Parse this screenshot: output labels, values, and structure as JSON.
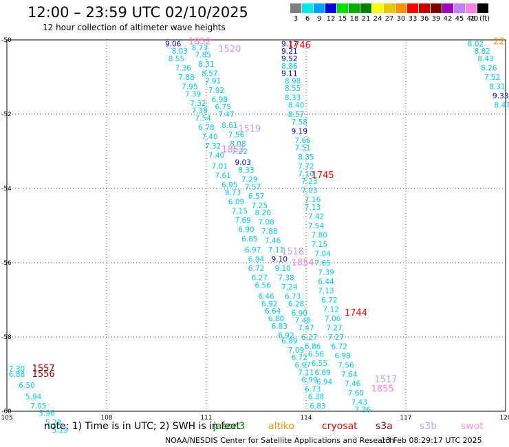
{
  "header": {
    "title": "12:00 – 23:59 UTC 02/10/2025",
    "subtitle": "12 hour collection of altimeter wave heights"
  },
  "legend": {
    "unit": "(ft)",
    "bins": [
      {
        "label": "3",
        "color": "#7f7f7f"
      },
      {
        "label": "6",
        "color": "#00e8e8"
      },
      {
        "label": "9",
        "color": "#00a0ff"
      },
      {
        "label": "12",
        "color": "#0000e0"
      },
      {
        "label": "15",
        "color": "#00e000"
      },
      {
        "label": "18",
        "color": "#00b000"
      },
      {
        "label": "21",
        "color": "#008000"
      },
      {
        "label": "24",
        "color": "#ffff00"
      },
      {
        "label": "27",
        "color": "#e8c800"
      },
      {
        "label": "30",
        "color": "#ff9000"
      },
      {
        "label": "33",
        "color": "#ff0000"
      },
      {
        "label": "36",
        "color": "#c80000"
      },
      {
        "label": "39",
        "color": "#800000"
      },
      {
        "label": "42",
        "color": "#a000c0"
      },
      {
        "label": "45",
        "color": "#c080ff"
      },
      {
        "label": "48",
        "color": "#ff80e0"
      },
      {
        "label": "70",
        "color": "#000000"
      }
    ]
  },
  "footer": {
    "note": "note: 1) Time is in UTC; 2) SWH is in feet",
    "satellites": [
      {
        "name": "jason3",
        "color": "#008000"
      },
      {
        "name": "altiko",
        "color": "#ff9000"
      },
      {
        "name": "cryosat",
        "color": "#e00000"
      },
      {
        "name": "s3a",
        "color": "#900000"
      },
      {
        "name": "s3b",
        "color": "#c0a8f0"
      },
      {
        "name": "swot",
        "color": "#ff90e0"
      }
    ],
    "credit": "NOAA/NESDIS Center for Satellite Applications and Research",
    "timestamp": "13 Feb 08:29:17 UTC 2025"
  },
  "chart_data": {
    "type": "scatter",
    "title": "12:00 – 23:59 UTC 02/10/2025",
    "subtitle": "12 hour collection of altimeter wave heights",
    "xlabel": "",
    "ylabel": "",
    "x_ticks": [
      105,
      108,
      111,
      114,
      117,
      120
    ],
    "x_tick_labels": [
      "105",
      "108",
      "111",
      "114",
      "117",
      "120"
    ],
    "y_ticks": [
      -50,
      -52,
      -54,
      -56,
      -58,
      -60
    ],
    "y_tick_labels": [
      "-50",
      "-52",
      "-54",
      "-56",
      "-58",
      "-60"
    ],
    "xlim": [
      105,
      120
    ],
    "ylim": [
      -60,
      -50
    ],
    "grid": true,
    "colors": {
      "cyan": "#00c8e8",
      "blue": "#1040ff",
      "navy": "#0000b0",
      "red": "#ff0000",
      "maroon": "#900000",
      "lav": "#b8a0f0",
      "pink": "#ff80d8",
      "orange": "#ff9000"
    },
    "series": [
      {
        "name": "",
        "color": "cyan",
        "points": [
          [
            110.0,
            -50.1,
            "9.06",
            "navy"
          ],
          [
            110.2,
            -50.3,
            "8.03"
          ],
          [
            110.1,
            -50.5,
            "8.55"
          ],
          [
            110.3,
            -50.75,
            "7.36"
          ],
          [
            110.4,
            -51.0,
            "7.88"
          ],
          [
            110.5,
            -51.25,
            "7.95"
          ],
          [
            110.6,
            -51.45,
            "7.39"
          ],
          [
            110.75,
            -51.7,
            "7.32"
          ],
          [
            110.8,
            -51.9,
            "7.38"
          ],
          [
            110.9,
            -52.1,
            "7.54"
          ],
          [
            111.0,
            -52.35,
            "6.78"
          ],
          [
            111.1,
            -52.6,
            "7.40"
          ],
          [
            111.2,
            -52.85,
            "7.32"
          ],
          [
            111.3,
            -53.1,
            "7.40"
          ],
          [
            111.4,
            -53.4,
            "7.01"
          ],
          [
            111.5,
            -53.65,
            "7.61"
          ],
          [
            111.7,
            -53.9,
            "6.95"
          ],
          [
            111.8,
            -54.1,
            "8.73"
          ],
          [
            111.9,
            -54.35,
            "6.09"
          ],
          [
            112.0,
            -54.6,
            "7.15"
          ],
          [
            112.1,
            -54.85,
            "7.69"
          ],
          [
            112.2,
            -55.1,
            "6.90"
          ],
          [
            112.3,
            -55.35,
            "6.85"
          ],
          [
            112.4,
            -55.65,
            "6.97"
          ],
          [
            112.5,
            -55.9,
            "6.94"
          ],
          [
            112.5,
            -56.15,
            "6.72"
          ],
          [
            112.6,
            -56.4,
            "6.27"
          ],
          [
            112.7,
            -56.6,
            "6.56"
          ],
          [
            112.8,
            -56.9,
            "6.46"
          ],
          [
            112.9,
            -57.1,
            "6.92"
          ],
          [
            113.0,
            -57.3,
            "6.64"
          ],
          [
            113.1,
            -57.5,
            "6.80"
          ],
          [
            113.2,
            -57.7,
            "6.83"
          ],
          [
            113.4,
            -57.95,
            "6.92"
          ],
          [
            113.5,
            -58.1,
            "6.89"
          ],
          [
            113.7,
            -58.35,
            "7.09"
          ],
          [
            113.8,
            -58.55,
            "6.72"
          ],
          [
            113.9,
            -58.75,
            "6.97"
          ],
          [
            114.0,
            -58.95,
            "7.11"
          ],
          [
            114.1,
            -59.15,
            "6.99"
          ],
          [
            114.2,
            -59.4,
            "6.73"
          ],
          [
            114.3,
            -59.6,
            "6.38"
          ],
          [
            114.35,
            -59.85,
            "6.83"
          ],
          [
            110.8,
            -50.2,
            "8.73"
          ],
          [
            110.9,
            -50.4,
            "7.85"
          ],
          [
            111.0,
            -50.65,
            "8.31"
          ],
          [
            111.1,
            -50.9,
            "8.57"
          ],
          [
            111.2,
            -51.1,
            "7.91"
          ],
          [
            111.3,
            -51.35,
            "7.92"
          ],
          [
            111.4,
            -51.6,
            "6.98"
          ],
          [
            111.5,
            -51.8,
            "6.75"
          ],
          [
            111.6,
            -52.0,
            "7.47"
          ],
          [
            111.7,
            -52.3,
            "8.61"
          ],
          [
            111.9,
            -52.55,
            "7.56"
          ],
          [
            111.95,
            -52.8,
            "8.08"
          ],
          [
            112.0,
            -53.0,
            "7.22"
          ],
          [
            112.1,
            -53.3,
            "9.03",
            "navy"
          ],
          [
            112.2,
            -53.5,
            "8.33"
          ],
          [
            112.3,
            -53.75,
            "7.29"
          ],
          [
            112.4,
            -53.95,
            "7.57"
          ],
          [
            112.5,
            -54.2,
            "6.57"
          ],
          [
            112.6,
            -54.45,
            "7.25"
          ],
          [
            112.7,
            -54.65,
            "8.20"
          ],
          [
            112.8,
            -54.9,
            "7.08"
          ],
          [
            112.9,
            -55.15,
            "7.88"
          ],
          [
            113.0,
            -55.4,
            "7.46"
          ],
          [
            113.1,
            -55.65,
            "7.11"
          ],
          [
            113.2,
            -55.9,
            "9.10",
            "navy"
          ],
          [
            113.3,
            -56.15,
            "9.10"
          ],
          [
            113.4,
            -56.4,
            "7.38"
          ],
          [
            113.5,
            -56.65,
            "7.24"
          ],
          [
            113.6,
            -56.9,
            "6.73"
          ],
          [
            113.7,
            -57.1,
            "6.28"
          ],
          [
            113.8,
            -57.35,
            "6.90"
          ],
          [
            113.9,
            -57.55,
            "7.48"
          ],
          [
            114.0,
            -57.75,
            "7.47"
          ],
          [
            114.1,
            -58.0,
            "6.27"
          ],
          [
            114.2,
            -58.25,
            "6.86"
          ],
          [
            114.3,
            -58.45,
            "6.56"
          ],
          [
            114.4,
            -58.7,
            "6.55"
          ],
          [
            114.5,
            -58.95,
            "6.69"
          ],
          [
            114.55,
            -59.2,
            "6.94"
          ],
          [
            113.5,
            -50.1,
            "9.17",
            "navy"
          ],
          [
            113.5,
            -50.3,
            "9.21",
            "navy"
          ],
          [
            113.5,
            -50.5,
            "9.52",
            "navy"
          ],
          [
            113.5,
            -50.7,
            "8.86"
          ],
          [
            113.5,
            -50.9,
            "9.11",
            "navy"
          ],
          [
            113.6,
            -51.1,
            "8.98"
          ],
          [
            113.6,
            -51.3,
            "8.55"
          ],
          [
            113.6,
            -51.55,
            "8.33"
          ],
          [
            113.7,
            -51.75,
            "8.40"
          ],
          [
            113.7,
            -52.0,
            "8.57"
          ],
          [
            113.8,
            -52.2,
            "7.58"
          ],
          [
            113.8,
            -52.45,
            "9.19",
            "navy"
          ],
          [
            113.9,
            -52.7,
            "7.66"
          ],
          [
            113.9,
            -52.9,
            "7.51"
          ],
          [
            114.0,
            -53.15,
            "8.35"
          ],
          [
            114.0,
            -53.4,
            "7.72"
          ],
          [
            114.0,
            -53.6,
            "7.10"
          ],
          [
            114.1,
            -53.8,
            "7.23"
          ],
          [
            114.1,
            -54.05,
            "7.03"
          ],
          [
            114.2,
            -54.3,
            "7.16"
          ],
          [
            114.2,
            -54.5,
            "7.13"
          ],
          [
            114.3,
            -54.75,
            "7.42"
          ],
          [
            114.3,
            -55.0,
            "7.54"
          ],
          [
            114.4,
            -55.25,
            "7.80"
          ],
          [
            114.4,
            -55.5,
            "7.15"
          ],
          [
            114.5,
            -55.75,
            "7.04"
          ],
          [
            114.5,
            -56.0,
            "7.65"
          ],
          [
            114.6,
            -56.25,
            "7.39"
          ],
          [
            114.6,
            -56.5,
            "6.44"
          ],
          [
            114.6,
            -56.75,
            "7.13"
          ],
          [
            114.7,
            -57.0,
            "6.72"
          ],
          [
            114.75,
            -57.25,
            "7.12"
          ],
          [
            114.8,
            -57.5,
            "7.06"
          ],
          [
            114.85,
            -57.75,
            "7.27"
          ],
          [
            114.9,
            -58.0,
            "7.27"
          ],
          [
            115.0,
            -58.25,
            "6.72"
          ],
          [
            115.1,
            -58.5,
            "6.98"
          ],
          [
            115.2,
            -58.75,
            "7.56"
          ],
          [
            115.3,
            -59.0,
            "7.64"
          ],
          [
            115.4,
            -59.25,
            "7.46"
          ],
          [
            115.5,
            -59.5,
            "7.60"
          ],
          [
            115.6,
            -59.75,
            "7.43"
          ],
          [
            115.7,
            -59.95,
            "7.36"
          ],
          [
            119.1,
            -50.1,
            "8.02"
          ],
          [
            119.3,
            -50.3,
            "8.82"
          ],
          [
            119.4,
            -50.5,
            "8.43"
          ],
          [
            119.5,
            -50.75,
            "8.26"
          ],
          [
            119.6,
            -51.0,
            "7.52"
          ],
          [
            119.75,
            -51.25,
            "8.31"
          ],
          [
            119.85,
            -51.5,
            "9.33",
            "navy"
          ],
          [
            119.9,
            -51.75,
            "8.47"
          ],
          [
            105.3,
            -58.85,
            "7.30"
          ],
          [
            105.3,
            -59.0,
            "6.88"
          ],
          [
            105.6,
            -59.3,
            "6.50"
          ],
          [
            105.8,
            -59.6,
            "5.94"
          ],
          [
            105.95,
            -59.85,
            "7.05"
          ],
          [
            106.2,
            -60.05,
            "5.96"
          ],
          [
            106.4,
            -60.3,
            "5.29"
          ],
          [
            106.6,
            -60.5,
            "5.19"
          ]
        ]
      },
      {
        "name": "",
        "color": "red",
        "points": [
          [
            113.8,
            -50.15,
            "1746",
            "red"
          ],
          [
            114.5,
            -53.65,
            "1745",
            "red"
          ],
          [
            115.5,
            -57.35,
            "1744",
            "red"
          ],
          [
            106.1,
            -58.85,
            "1557",
            "maroon"
          ],
          [
            106.1,
            -59.0,
            "1556",
            "maroon"
          ],
          [
            110.8,
            -50.05,
            "1852",
            "pink"
          ],
          [
            111.8,
            -52.95,
            "1853",
            "pink"
          ],
          [
            113.9,
            -56.0,
            "1854",
            "pink"
          ],
          [
            116.3,
            -59.4,
            "1855",
            "pink"
          ],
          [
            111.7,
            -50.25,
            "1520",
            "lav"
          ],
          [
            112.3,
            -52.4,
            "1519",
            "lav"
          ],
          [
            113.6,
            -55.7,
            "1518",
            "lav"
          ],
          [
            116.4,
            -59.15,
            "1517",
            "lav"
          ],
          [
            119.8,
            -50.05,
            "22",
            "orange"
          ]
        ]
      }
    ]
  }
}
